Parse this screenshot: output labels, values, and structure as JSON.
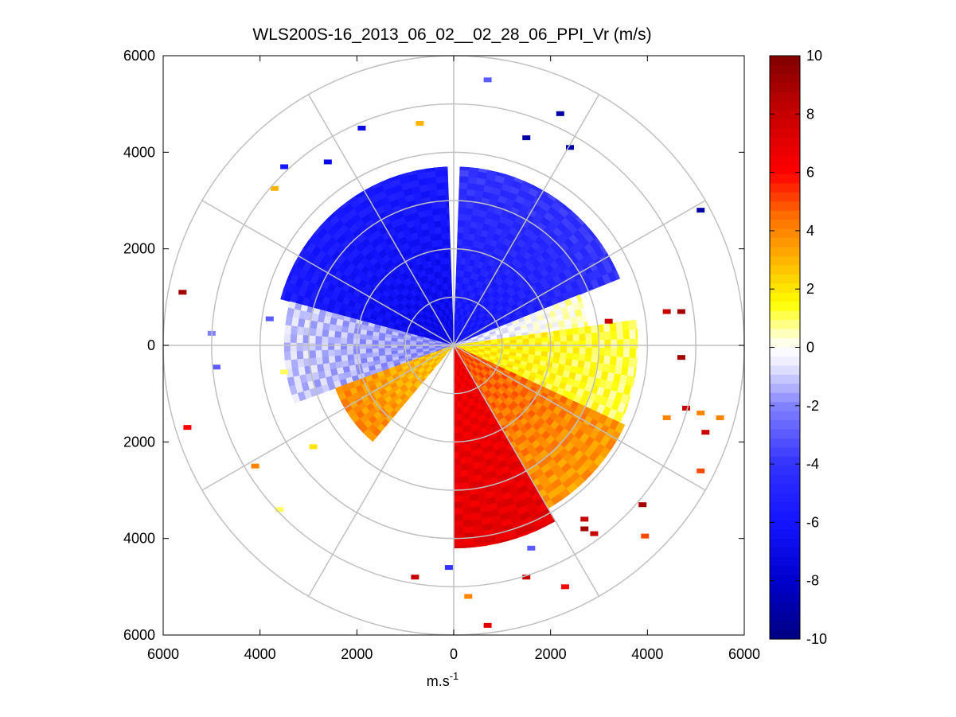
{
  "chart_data": {
    "type": "heatmap",
    "subtype": "polar-ppi",
    "title": "WLS200S-16_2013_06_02__02_28_06_PPI_Vr (m/s)",
    "xlabel_base": "m.s",
    "xlabel_exp": "-1",
    "xlim": [
      -6000,
      6000
    ],
    "ylim": [
      -6000,
      6000
    ],
    "x_ticks": [
      -6000,
      -4000,
      -2000,
      0,
      2000,
      4000,
      6000
    ],
    "x_tick_labels": [
      "6000",
      "4000",
      "2000",
      "0",
      "2000",
      "4000",
      "6000"
    ],
    "y_ticks": [
      6000,
      4000,
      2000,
      0,
      -2000,
      -4000,
      -6000
    ],
    "y_tick_labels": [
      "6000",
      "4000",
      "2000",
      "0",
      "2000",
      "4000",
      "6000"
    ],
    "range_rings": [
      1000,
      2000,
      3000,
      4000,
      5000,
      6000
    ],
    "spoke_angles_deg": [
      0,
      30,
      60,
      90,
      120,
      150,
      180,
      210,
      240,
      270,
      300,
      330
    ],
    "grid": true,
    "colorbar": {
      "min": -10,
      "max": 10,
      "ticks": [
        10,
        8,
        6,
        4,
        2,
        0,
        -2,
        -4,
        -6,
        -8,
        -10
      ],
      "tick_labels": [
        "10",
        "8",
        "6",
        "4",
        "2",
        "0",
        "-2",
        "-4",
        "-6",
        "-8",
        "-10"
      ],
      "colormap": "blue-white-yellow-red",
      "stops": [
        "#000080",
        "#0000ff",
        "#2222ff",
        "#ffffff",
        "#ffff00",
        "#ff8000",
        "#ff0000",
        "#800000"
      ]
    },
    "velocity_field": {
      "description_model": "radial velocity sectors by azimuth (deg clockwise from north) and range (m)",
      "sectors": [
        {
          "az_start": -75,
          "az_end": -2,
          "r_max": 3700,
          "v_near": -7,
          "v_far": -5.5
        },
        {
          "az_start": 2,
          "az_end": 68,
          "r_max": 3700,
          "v_near": -6,
          "v_far": -4
        },
        {
          "az_start": 68,
          "az_end": 82,
          "r_max": 2800,
          "v_near": -1,
          "v_far": 0.5
        },
        {
          "az_start": 82,
          "az_end": 115,
          "r_max": 3800,
          "v_near": 2,
          "v_far": 1
        },
        {
          "az_start": 115,
          "az_end": 150,
          "r_max": 3900,
          "v_near": 5,
          "v_far": 3.5
        },
        {
          "az_start": 150,
          "az_end": 180,
          "r_max": 4200,
          "v_near": 6.5,
          "v_far": 7
        },
        {
          "az_start": -110,
          "az_end": -75,
          "r_max": 3500,
          "v_near": -2,
          "v_far": -1
        },
        {
          "az_start": -140,
          "az_end": -110,
          "r_max": 2600,
          "v_near": 2.5,
          "v_far": 4
        }
      ]
    },
    "scatter_points": [
      {
        "x": 700,
        "y": 5500,
        "v": -3
      },
      {
        "x": 2200,
        "y": 4800,
        "v": -9
      },
      {
        "x": 1500,
        "y": 4300,
        "v": -9
      },
      {
        "x": 2400,
        "y": 4100,
        "v": -9
      },
      {
        "x": 5100,
        "y": 2800,
        "v": -9
      },
      {
        "x": -1900,
        "y": 4500,
        "v": -7
      },
      {
        "x": -2600,
        "y": 3800,
        "v": -7
      },
      {
        "x": -3500,
        "y": 3700,
        "v": -6
      },
      {
        "x": -700,
        "y": 4600,
        "v": 3
      },
      {
        "x": -3700,
        "y": 3250,
        "v": 3
      },
      {
        "x": -5600,
        "y": 1100,
        "v": 9
      },
      {
        "x": -5000,
        "y": 250,
        "v": -2
      },
      {
        "x": -3800,
        "y": 550,
        "v": -3
      },
      {
        "x": -3500,
        "y": -550,
        "v": 1
      },
      {
        "x": -4900,
        "y": -450,
        "v": -3
      },
      {
        "x": -5500,
        "y": -1700,
        "v": 6
      },
      {
        "x": -2900,
        "y": -2100,
        "v": 2
      },
      {
        "x": -4100,
        "y": -2500,
        "v": 4
      },
      {
        "x": -3600,
        "y": -3400,
        "v": 1
      },
      {
        "x": -800,
        "y": -4800,
        "v": 8
      },
      {
        "x": -100,
        "y": -4600,
        "v": -4
      },
      {
        "x": 300,
        "y": -5200,
        "v": 4
      },
      {
        "x": 700,
        "y": -5800,
        "v": 7
      },
      {
        "x": 1600,
        "y": -4200,
        "v": -3
      },
      {
        "x": 1500,
        "y": -4800,
        "v": 8
      },
      {
        "x": 2300,
        "y": -5000,
        "v": 6
      },
      {
        "x": 2700,
        "y": -3600,
        "v": 8
      },
      {
        "x": 2700,
        "y": -3800,
        "v": 9
      },
      {
        "x": 2900,
        "y": -3900,
        "v": 8
      },
      {
        "x": 3900,
        "y": -3300,
        "v": 9
      },
      {
        "x": 3950,
        "y": -3950,
        "v": 5
      },
      {
        "x": 4400,
        "y": -1500,
        "v": 4
      },
      {
        "x": 4800,
        "y": -1300,
        "v": 8
      },
      {
        "x": 4700,
        "y": -250,
        "v": 9
      },
      {
        "x": 4700,
        "y": 700,
        "v": 9
      },
      {
        "x": 4400,
        "y": 700,
        "v": 8
      },
      {
        "x": 3200,
        "y": 500,
        "v": 8
      },
      {
        "x": 5100,
        "y": -1400,
        "v": 4
      },
      {
        "x": 5500,
        "y": -1500,
        "v": 4
      },
      {
        "x": 5200,
        "y": -1800,
        "v": 8
      },
      {
        "x": 5100,
        "y": -2600,
        "v": 5
      }
    ]
  }
}
